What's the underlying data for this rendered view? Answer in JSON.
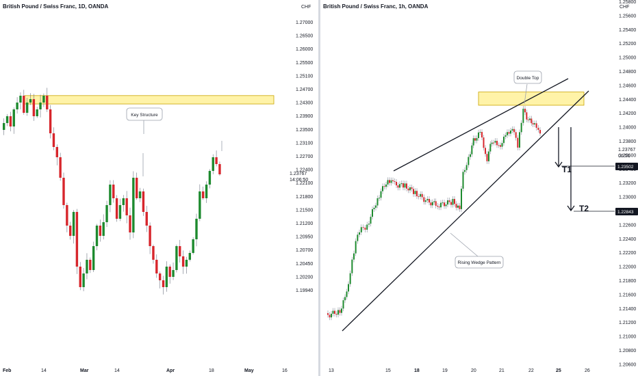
{
  "chart_data": [
    {
      "type": "candlestick",
      "title": "British Pound / Swiss Franc, 1D, OANDA",
      "currency": "CHF",
      "y_ticks": [
        "1.27000",
        "1.26500",
        "1.26000",
        "1.25500",
        "1.25100",
        "1.24700",
        "1.24300",
        "1.23900",
        "1.23500",
        "1.23100",
        "1.22700",
        "1.22400",
        "1.22100",
        "1.21800",
        "1.21500",
        "1.21200",
        "1.20950",
        "1.20700",
        "1.20450",
        "1.20200",
        "1.19940"
      ],
      "last_price": "1.23767",
      "countdown": "14:06:50",
      "x_ticks": [
        {
          "label": "Feb",
          "bold": true
        },
        {
          "label": "14",
          "bold": false
        },
        {
          "label": "Mar",
          "bold": true
        },
        {
          "label": "14",
          "bold": false
        },
        {
          "label": "Apr",
          "bold": true
        },
        {
          "label": "18",
          "bold": false
        },
        {
          "label": "May",
          "bold": true
        },
        {
          "label": "16",
          "bold": false
        }
      ],
      "zone": {
        "from": 1.2427,
        "to": 1.2452
      },
      "annotations": [
        {
          "text": "Key Structure"
        }
      ]
    },
    {
      "type": "candlestick",
      "title": "British Pound / Swiss Franc, 1h, OANDA",
      "currency": "CHF",
      "y_ticks": [
        "1.25800",
        "1.25600",
        "1.25400",
        "1.25200",
        "1.25000",
        "1.24800",
        "1.24600",
        "1.24400",
        "1.24200",
        "1.24000",
        "1.23800",
        "1.23600",
        "1.23400",
        "1.23200",
        "1.23000",
        "1.22800",
        "1.22600",
        "1.22400",
        "1.22200",
        "1.22000",
        "1.21800",
        "1.21600",
        "1.21400",
        "1.21200",
        "1.21000",
        "1.20800",
        "1.20600"
      ],
      "last_price": "1.23767",
      "countdown": "06:51",
      "targets": [
        {
          "label": "T1",
          "price": "1.23502"
        },
        {
          "label": "T2",
          "price": "1.22843"
        }
      ],
      "x_ticks": [
        {
          "label": "13",
          "bold": false
        },
        {
          "label": "15",
          "bold": false
        },
        {
          "label": "18",
          "bold": true
        },
        {
          "label": "19",
          "bold": false
        },
        {
          "label": "20",
          "bold": false
        },
        {
          "label": "21",
          "bold": false
        },
        {
          "label": "22",
          "bold": false
        },
        {
          "label": "25",
          "bold": true
        },
        {
          "label": "26",
          "bold": false
        }
      ],
      "zone": {
        "from": 1.2432,
        "to": 1.2451
      },
      "annotations": [
        {
          "text": "Double Top"
        },
        {
          "text": "Rising Wedge Pattern"
        }
      ]
    }
  ],
  "colors": {
    "bull": "#1d8a2e",
    "bear": "#d7262c",
    "zone_fill": "#fff3a8",
    "zone_border": "#c9a400",
    "badge": "#131722"
  }
}
